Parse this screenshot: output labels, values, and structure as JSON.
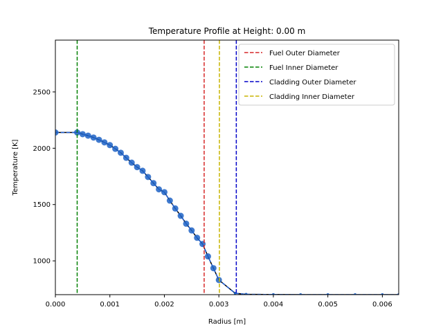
{
  "chart_data": {
    "type": "line",
    "title": "Temperature Profile at Height: 0.00 m",
    "xlabel": "Radius [m]",
    "ylabel": "Temperature [K]",
    "xlim": [
      0.0,
      0.0063
    ],
    "ylim": [
      700,
      2960
    ],
    "xticks": [
      "0.000",
      "0.001",
      "0.002",
      "0.003",
      "0.004",
      "0.005",
      "0.006"
    ],
    "yticks": [
      "1000",
      "1500",
      "2000",
      "2500"
    ],
    "legend_position": "top-right",
    "grid": false,
    "series": [
      {
        "type": "line-markers",
        "color": "#1f5fd6",
        "marker_color": "#1f63c6",
        "x": [
          0.0,
          0.0004,
          0.0005,
          0.0006,
          0.0007,
          0.0008,
          0.0009,
          0.001,
          0.0011,
          0.0012,
          0.0013,
          0.0014,
          0.0015,
          0.0016,
          0.0017,
          0.0018,
          0.0019,
          0.002,
          0.0021,
          0.0022,
          0.0023,
          0.0024,
          0.0025,
          0.0026,
          0.0027,
          0.0028,
          0.0029,
          0.003,
          0.0033,
          0.0035,
          0.004,
          0.0045,
          0.005,
          0.0055,
          0.006,
          0.0063
        ],
        "y": [
          2140,
          2140,
          2125,
          2112,
          2095,
          2075,
          2052,
          2028,
          1995,
          1960,
          1915,
          1872,
          1832,
          1800,
          1745,
          1690,
          1635,
          1610,
          1535,
          1465,
          1400,
          1330,
          1270,
          1205,
          1150,
          1040,
          935,
          830,
          712,
          703,
          701,
          700,
          700,
          700,
          700,
          700
        ],
        "marker_count": 28
      }
    ],
    "vertical_lines": [
      {
        "name": "Fuel Outer Diameter",
        "x": 0.00273,
        "color": "#d62728"
      },
      {
        "name": "Fuel Inner Diameter",
        "x": 0.0004,
        "color": "#008000"
      },
      {
        "name": "Cladding Outer Diameter",
        "x": 0.00332,
        "color": "#0000c8"
      },
      {
        "name": "Cladding Inner Diameter",
        "x": 0.00301,
        "color": "#c8b400"
      }
    ]
  }
}
